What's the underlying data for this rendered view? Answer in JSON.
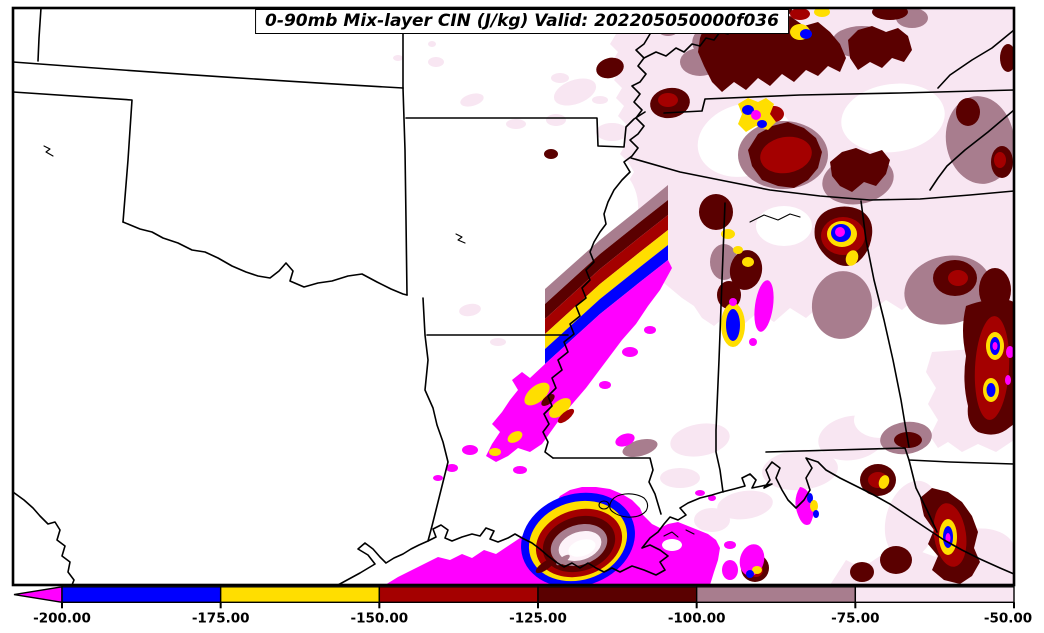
{
  "title": "0-90mb Mix-layer CIN (J/kg) Valid: 202205050000f036",
  "colorbar": {
    "tick_labels": [
      "-200.00",
      "-175.00",
      "-150.00",
      "-125.00",
      "-100.00",
      "-75.00",
      "-50.00"
    ],
    "segment_colors": [
      "#FF00FF",
      "#0000FF",
      "#FFDE00",
      "#A40000",
      "#5A0000",
      "#A87D8E",
      "#F8E6F2"
    ],
    "left_end": "arrow",
    "right_end": "flat"
  },
  "chart_data": {
    "type": "filled-contour-map",
    "title": "0-90mb Mix-layer CIN (J/kg) Valid: 202205050000f036",
    "levels": [
      -200,
      -175,
      -150,
      -125,
      -100,
      -75,
      -50
    ],
    "level_colors_below_to_above": [
      "#FF00FF",
      "#0000FF",
      "#FFDE00",
      "#A40000",
      "#5A0000",
      "#A87D8E",
      "#F8E6F2"
    ],
    "legend_position": "bottom"
  },
  "palette": {
    "magenta": "#FF00FF",
    "blue": "#0000FF",
    "yellow": "#FFDE00",
    "red": "#A40000",
    "maroon": "#5A0000",
    "mauve": "#A87D8E",
    "pink": "#F8E6F2",
    "outline": "#000000",
    "background": "#FFFFFF"
  }
}
